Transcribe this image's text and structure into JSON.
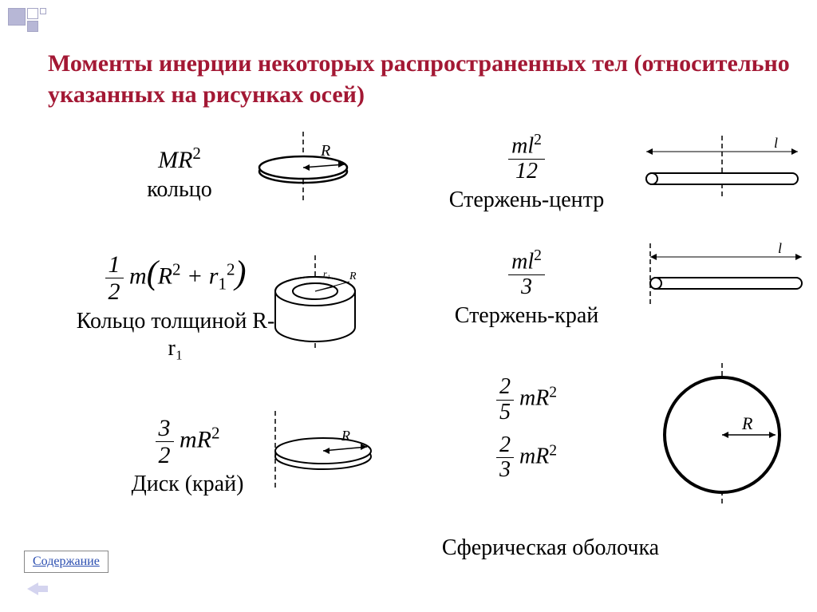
{
  "title": "Моменты инерции некоторых распространенных тел (относительно указанных на рисунках осей)",
  "items": {
    "ring": {
      "formula_html": "<i>MR</i><span class='sup'>2</span>",
      "label": "кольцо"
    },
    "thick_ring": {
      "formula_html": "<span class='frac'><span class='n'>1</span><span class='d'>2</span></span> <i>m</i><span style='font-size:1.4em'>(</span><i>R</i><span class='sup'>2</span> + <i>r</i><span class='sub'>1</span><span class='sup'>2</span><span style='font-size:1.4em'>)</span>",
      "label": "Кольцо толщиной R-r₁"
    },
    "disk_edge": {
      "formula_html": "<span class='frac'><span class='n'>3</span><span class='d'>2</span></span> <i>mR</i><span class='sup'>2</span>",
      "label": "Диск (край)"
    },
    "rod_center": {
      "formula_html": "<span class='frac'><span class='n'><i>ml</i><span class='sup' style='font-style:normal'>2</span></span><span class='d'>12</span></span>",
      "label": "Стержень-центр"
    },
    "rod_end": {
      "formula_html": "<span class='frac'><span class='n'><i>ml</i><span class='sup' style='font-style:normal'>2</span></span><span class='d'>3</span></span>",
      "label": "Стержень-край"
    },
    "sphere_shell": {
      "formula1_html": "<span class='frac'><span class='n'>2</span><span class='d'>5</span></span> <i>mR</i><span class='sup'>2</span>",
      "formula2_html": "<span class='frac'><span class='n'>2</span><span class='d'>3</span></span> <i>mR</i><span class='sup'>2</span>",
      "label": "Сферическая оболочка"
    }
  },
  "toc_label": "Содержание",
  "diagram_labels": {
    "R": "R",
    "r1": "r₁",
    "l": "l"
  },
  "colors": {
    "title": "#a31834",
    "text": "#000000",
    "link": "#2a4db0",
    "stroke": "#000000",
    "bg": "#ffffff"
  }
}
